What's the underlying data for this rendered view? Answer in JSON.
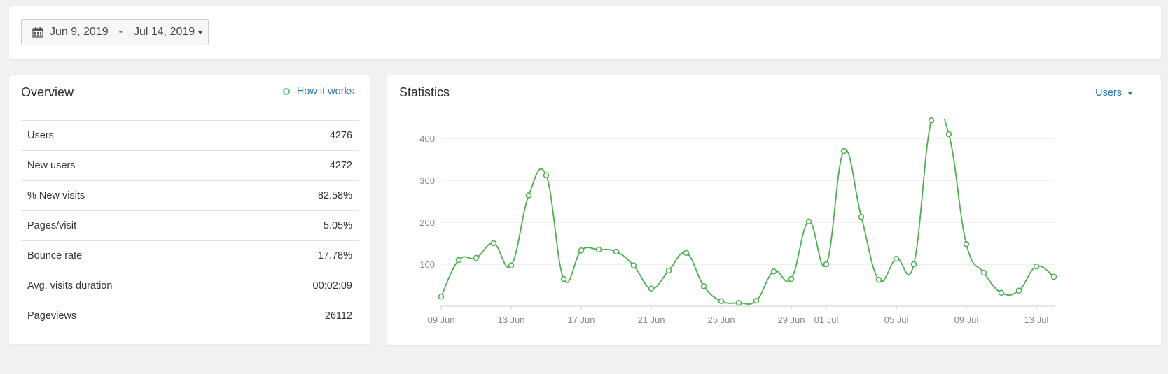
{
  "date_range": {
    "start": "Jun 9, 2019",
    "separator": "-",
    "end": "Jul 14, 2019"
  },
  "overview": {
    "title": "Overview",
    "how_it_works": "How it works",
    "rows": [
      {
        "label": "Users",
        "value": "4276"
      },
      {
        "label": "New users",
        "value": "4272"
      },
      {
        "label": "% New visits",
        "value": "82.58%"
      },
      {
        "label": "Pages/visit",
        "value": "5.05%"
      },
      {
        "label": "Bounce rate",
        "value": "17.78%"
      },
      {
        "label": "Avg. visits duration",
        "value": "00:02:09"
      },
      {
        "label": "Pageviews",
        "value": "26112"
      }
    ]
  },
  "statistics": {
    "title": "Statistics",
    "metric_dropdown": "Users"
  },
  "chart_data": {
    "type": "line",
    "color": "#4caf50",
    "ylim": [
      0,
      450
    ],
    "y_ticks": [
      100,
      200,
      300,
      400
    ],
    "x_tick_labels": [
      "09 Jun",
      "13 Jun",
      "17 Jun",
      "21 Jun",
      "25 Jun",
      "29 Jun",
      "01 Jul",
      "05 Jul",
      "09 Jul",
      "13 Jul"
    ],
    "x_tick_day_index": [
      0,
      4,
      8,
      12,
      16,
      20,
      22,
      26,
      30,
      34
    ],
    "day_count": 36,
    "values": [
      23,
      110,
      115,
      150,
      97,
      264,
      312,
      65,
      133,
      135,
      130,
      97,
      42,
      85,
      127,
      48,
      12,
      8,
      13,
      83,
      65,
      202,
      100,
      370,
      213,
      63,
      113,
      100,
      443,
      410,
      148,
      80,
      32,
      37,
      95,
      70
    ],
    "grid": true,
    "legend": "none"
  }
}
